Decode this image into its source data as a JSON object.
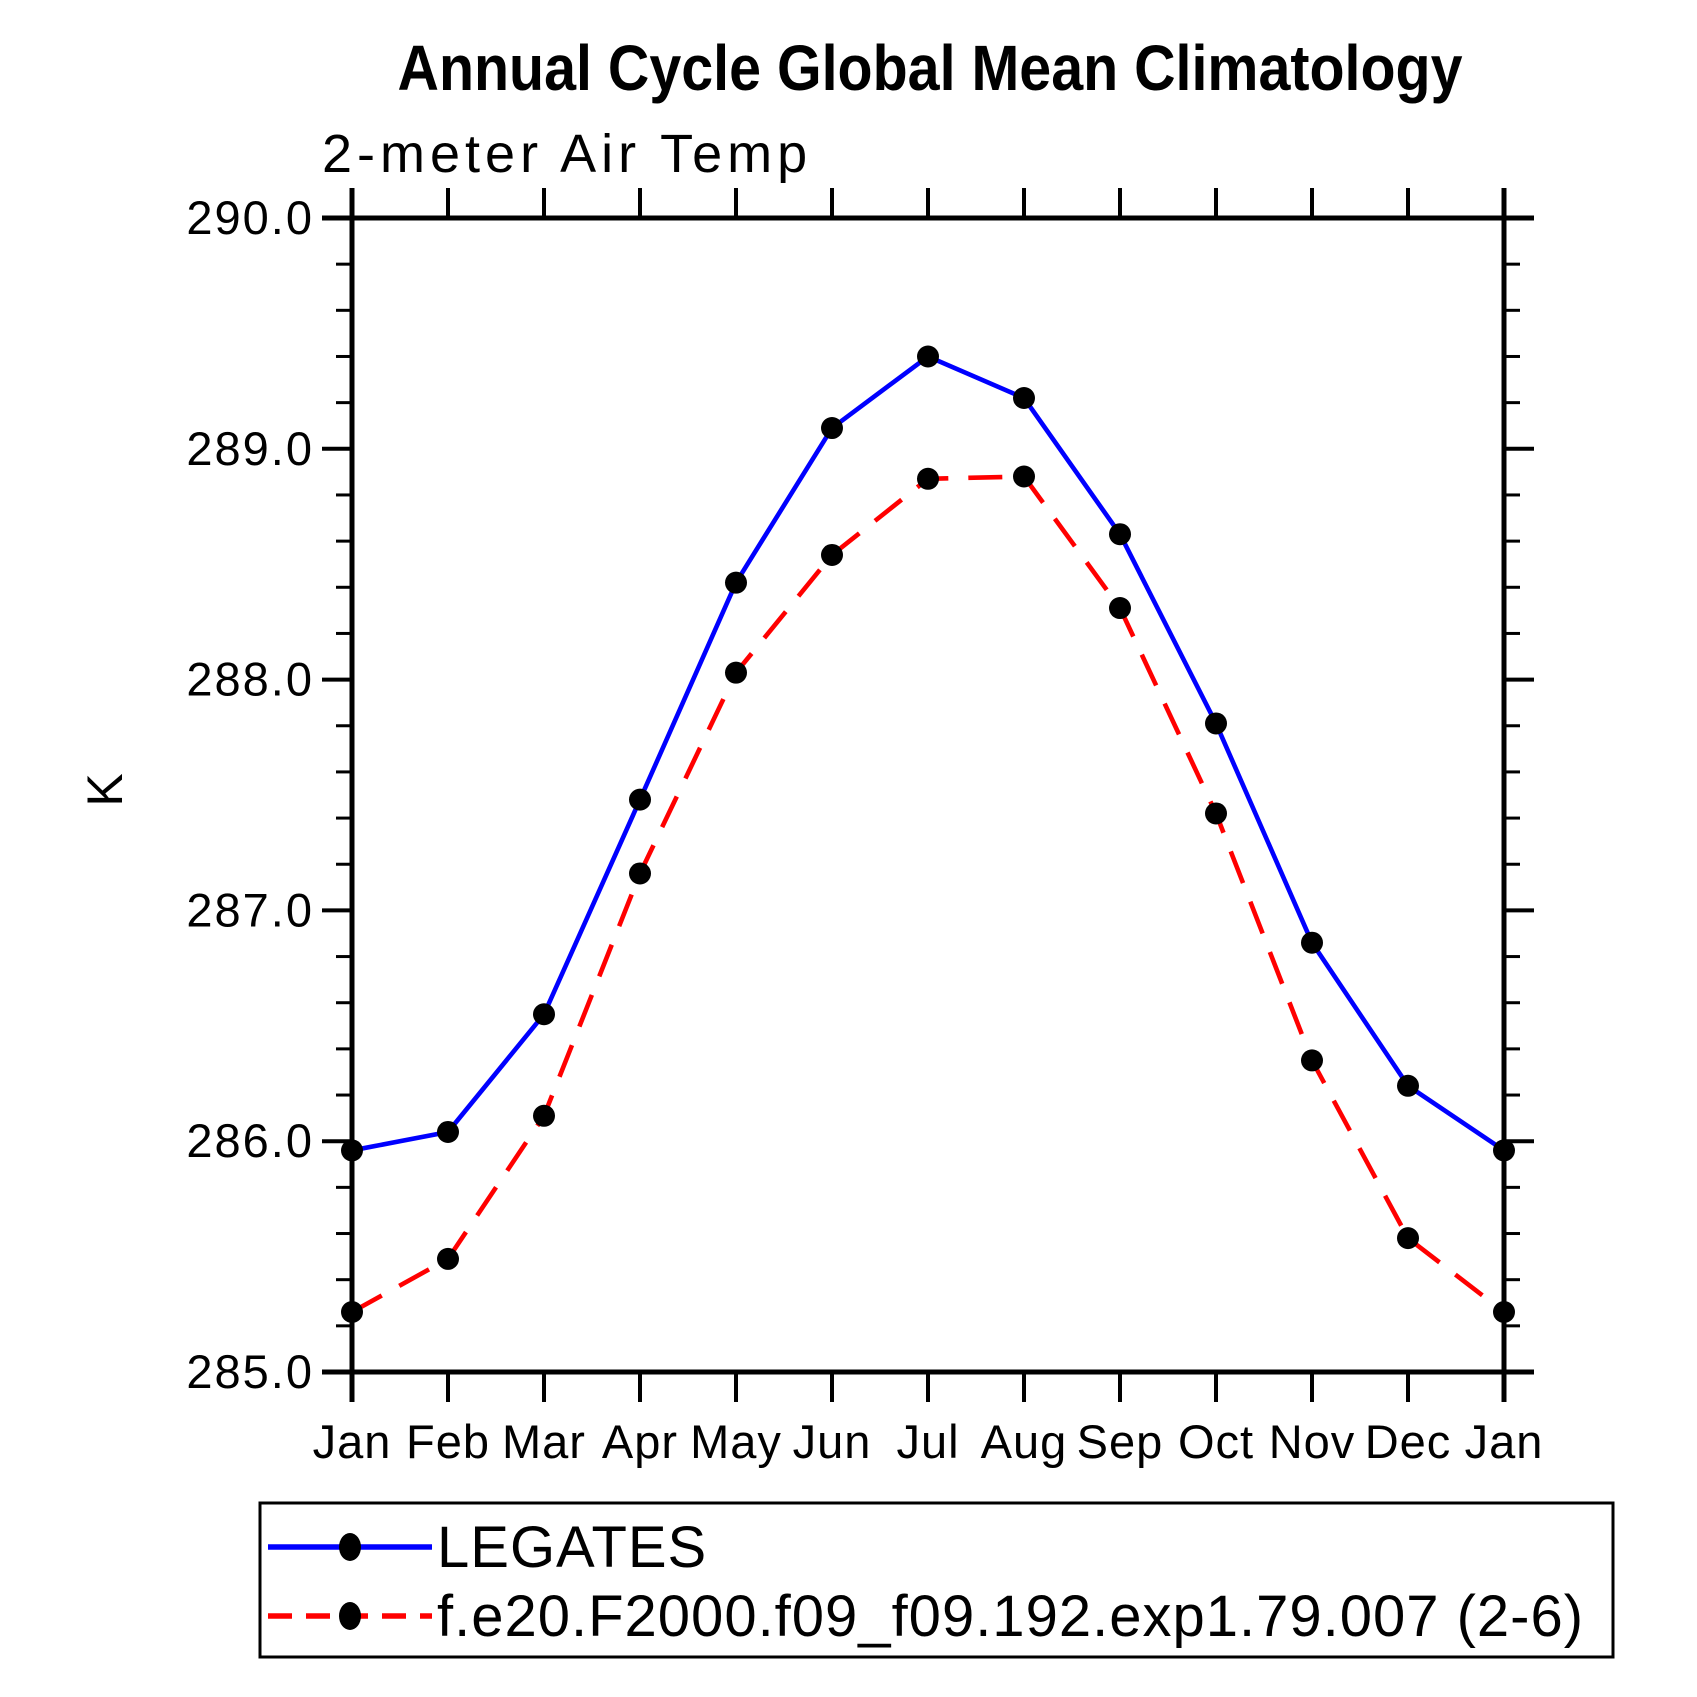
{
  "header": {
    "title": "Annual Cycle Global Mean Climatology",
    "subtitle": "2-meter Air Temp"
  },
  "chart_data": {
    "type": "line",
    "title": "Annual Cycle Global Mean Climatology",
    "subtitle": "2-meter Air Temp",
    "xlabel": "",
    "ylabel": "K",
    "x_categories": [
      "Jan",
      "Feb",
      "Mar",
      "Apr",
      "May",
      "Jun",
      "Jul",
      "Aug",
      "Sep",
      "Oct",
      "Nov",
      "Dec",
      "Jan"
    ],
    "ylim": [
      285.0,
      290.0
    ],
    "ytick_values": [
      285.0,
      286.0,
      287.0,
      288.0,
      289.0,
      290.0
    ],
    "ytick_labels": [
      "285.0",
      "286.0",
      "287.0",
      "288.0",
      "289.0",
      "290.0"
    ],
    "y_minor_interval": 0.2,
    "grid": false,
    "tick_style": "outward-all-four-sides",
    "legend_position": "boxed-below-left",
    "series": [
      {
        "name": "LEGATES",
        "color": "#0000ff",
        "line_style": "solid",
        "marker": "filled-circle",
        "marker_color": "#000000",
        "values": [
          285.96,
          286.04,
          286.55,
          287.48,
          288.42,
          289.09,
          289.4,
          289.22,
          288.63,
          287.81,
          286.86,
          286.24,
          285.96
        ]
      },
      {
        "name": "f.e20.F2000.f09_f09.192.exp1.79.007 (2-6)",
        "color": "#ff0000",
        "line_style": "dashed",
        "marker": "filled-circle",
        "marker_color": "#000000",
        "values": [
          285.26,
          285.49,
          286.11,
          287.16,
          288.03,
          288.54,
          288.87,
          288.88,
          288.31,
          287.42,
          286.35,
          285.58,
          285.26
        ]
      }
    ]
  },
  "colors": {
    "background": "#ffffff",
    "axis": "#000000",
    "text": "#000000",
    "series1": "#0000ff",
    "series2": "#ff0000",
    "marker": "#000000"
  }
}
